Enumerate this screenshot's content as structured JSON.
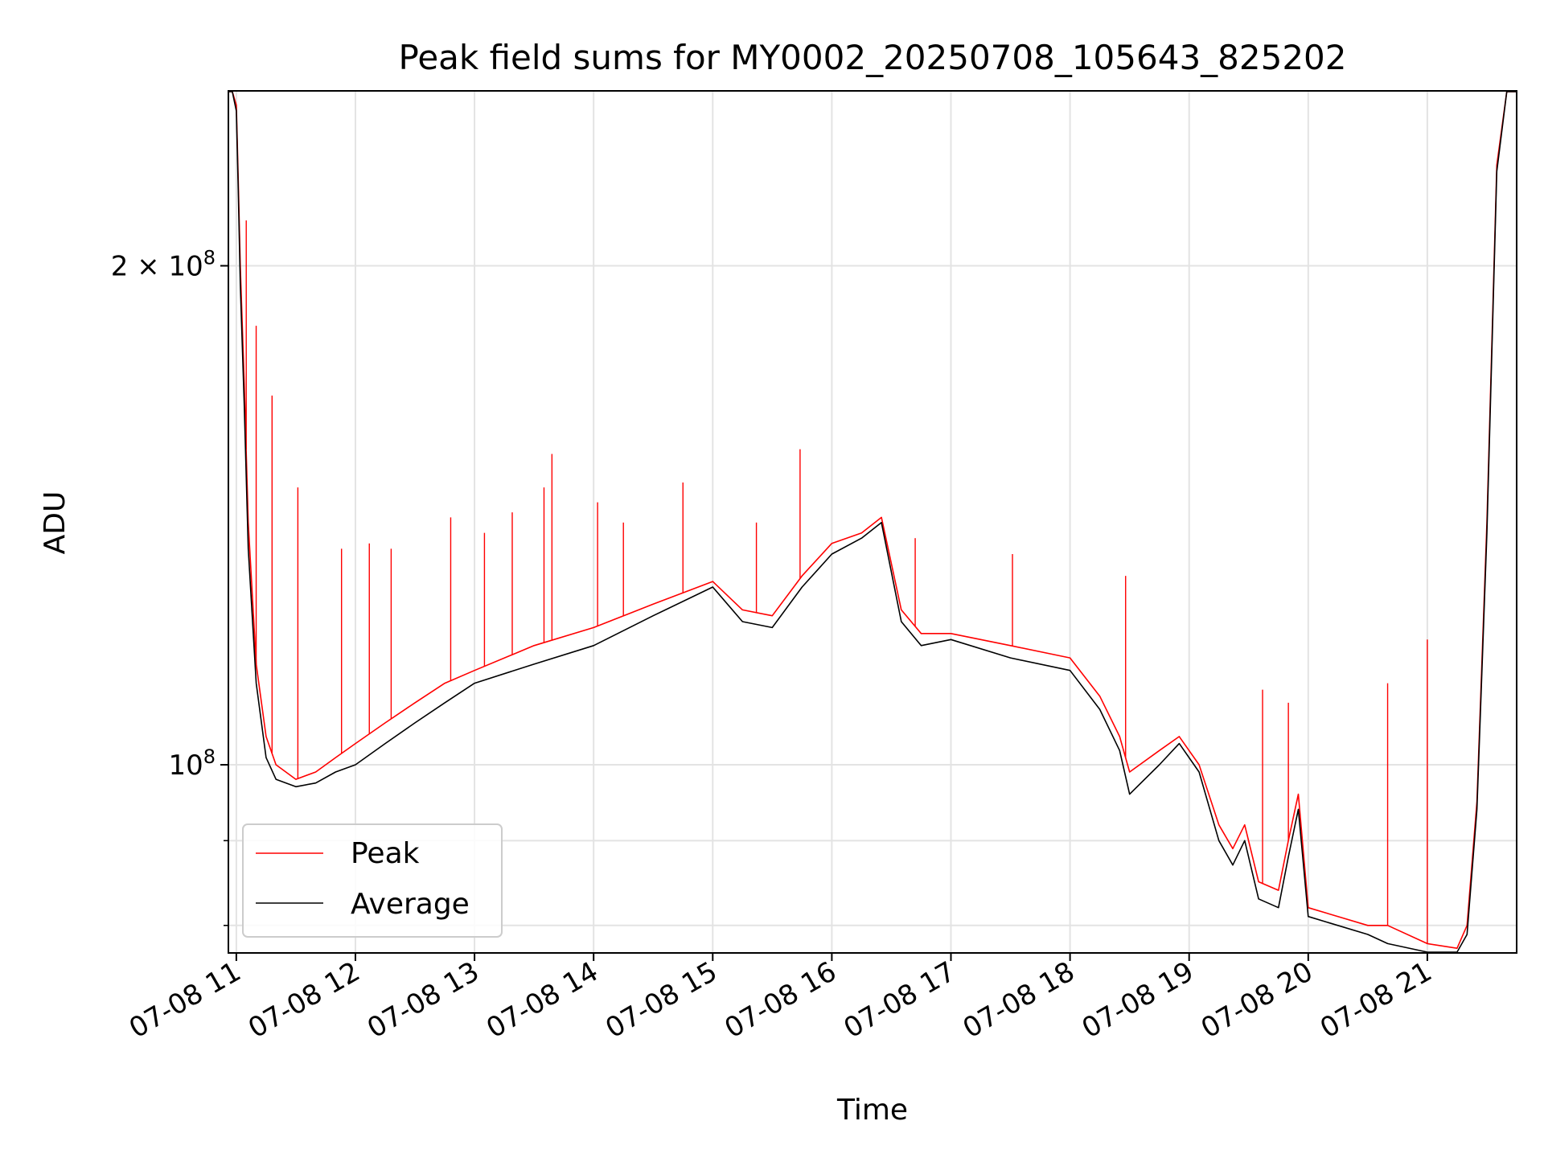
{
  "chart_data": {
    "type": "line",
    "title": "Peak field sums for MY0002_20250708_105643_825202",
    "xlabel": "Time",
    "ylabel": "ADU",
    "yscale": "log",
    "ylim": [
      77000000,
      255000000
    ],
    "xlim": [
      "2025-07-08 10:56",
      "2025-07-08 21:45"
    ],
    "grid": true,
    "legend_position": "lower-left",
    "x_ticks": [
      {
        "value": "2025-07-08 11:00",
        "label": "07-08 11"
      },
      {
        "value": "2025-07-08 12:00",
        "label": "07-08 12"
      },
      {
        "value": "2025-07-08 13:00",
        "label": "07-08 13"
      },
      {
        "value": "2025-07-08 14:00",
        "label": "07-08 14"
      },
      {
        "value": "2025-07-08 15:00",
        "label": "07-08 15"
      },
      {
        "value": "2025-07-08 16:00",
        "label": "07-08 16"
      },
      {
        "value": "2025-07-08 17:00",
        "label": "07-08 17"
      },
      {
        "value": "2025-07-08 18:00",
        "label": "07-08 18"
      },
      {
        "value": "2025-07-08 19:00",
        "label": "07-08 19"
      },
      {
        "value": "2025-07-08 20:00",
        "label": "07-08 20"
      },
      {
        "value": "2025-07-08 21:00",
        "label": "07-08 21"
      }
    ],
    "y_major_ticks": [
      {
        "value": 100000000,
        "mantissa": "",
        "exponent": "8"
      },
      {
        "value": 200000000,
        "mantissa": "2 × ",
        "exponent": "8"
      }
    ],
    "y_minor_ticks": [
      80000000,
      90000000
    ],
    "series": [
      {
        "name": "Peak",
        "color": "#ff0000",
        "x": [
          "2025-07-08 10:56",
          "2025-07-08 10:58",
          "2025-07-08 11:00",
          "2025-07-08 11:01",
          "2025-07-08 11:02",
          "2025-07-08 11:04",
          "2025-07-08 11:06",
          "2025-07-08 11:10",
          "2025-07-08 11:15",
          "2025-07-08 11:20",
          "2025-07-08 11:30",
          "2025-07-08 11:40",
          "2025-07-08 11:50",
          "2025-07-08 12:00",
          "2025-07-08 12:15",
          "2025-07-08 12:30",
          "2025-07-08 12:45",
          "2025-07-08 13:00",
          "2025-07-08 13:30",
          "2025-07-08 14:00",
          "2025-07-08 14:30",
          "2025-07-08 15:00",
          "2025-07-08 15:15",
          "2025-07-08 15:30",
          "2025-07-08 15:45",
          "2025-07-08 16:00",
          "2025-07-08 16:15",
          "2025-07-08 16:25",
          "2025-07-08 16:35",
          "2025-07-08 16:45",
          "2025-07-08 17:00",
          "2025-07-08 17:30",
          "2025-07-08 18:00",
          "2025-07-08 18:15",
          "2025-07-08 18:25",
          "2025-07-08 18:30",
          "2025-07-08 18:45",
          "2025-07-08 18:55",
          "2025-07-08 19:05",
          "2025-07-08 19:15",
          "2025-07-08 19:22",
          "2025-07-08 19:28",
          "2025-07-08 19:35",
          "2025-07-08 19:45",
          "2025-07-08 19:50",
          "2025-07-08 19:55",
          "2025-07-08 20:00",
          "2025-07-08 20:30",
          "2025-07-08 20:40",
          "2025-07-08 21:00",
          "2025-07-08 21:15",
          "2025-07-08 21:20",
          "2025-07-08 21:25",
          "2025-07-08 21:30",
          "2025-07-08 21:35",
          "2025-07-08 21:40",
          "2025-07-08 21:45"
        ],
        "y": [
          255000000,
          255000000,
          250000000,
          225000000,
          200000000,
          170000000,
          140000000,
          115000000,
          104000000,
          100000000,
          98000000,
          99000000,
          101000000,
          103000000,
          106000000,
          109000000,
          112000000,
          114000000,
          118000000,
          121000000,
          125000000,
          129000000,
          124000000,
          123000000,
          130000000,
          136000000,
          138000000,
          141000000,
          124000000,
          120000000,
          120000000,
          118000000,
          116000000,
          110000000,
          104000000,
          99000000,
          102000000,
          104000000,
          100000000,
          92000000,
          89000000,
          92000000,
          85000000,
          84000000,
          90000000,
          96000000,
          82000000,
          80000000,
          80000000,
          78000000,
          77500000,
          80000000,
          95000000,
          140000000,
          230000000,
          255000000,
          255000000
        ],
        "spikes": [
          {
            "x": "2025-07-08 11:05",
            "y": 213000000
          },
          {
            "x": "2025-07-08 11:10",
            "y": 184000000
          },
          {
            "x": "2025-07-08 11:18",
            "y": 167000000
          },
          {
            "x": "2025-07-08 11:31",
            "y": 147000000
          },
          {
            "x": "2025-07-08 11:53",
            "y": 135000000
          },
          {
            "x": "2025-07-08 12:07",
            "y": 136000000
          },
          {
            "x": "2025-07-08 12:18",
            "y": 135000000
          },
          {
            "x": "2025-07-08 12:48",
            "y": 141000000
          },
          {
            "x": "2025-07-08 13:05",
            "y": 138000000
          },
          {
            "x": "2025-07-08 13:19",
            "y": 142000000
          },
          {
            "x": "2025-07-08 13:35",
            "y": 147000000
          },
          {
            "x": "2025-07-08 13:39",
            "y": 154000000
          },
          {
            "x": "2025-07-08 14:02",
            "y": 144000000
          },
          {
            "x": "2025-07-08 14:15",
            "y": 140000000
          },
          {
            "x": "2025-07-08 14:45",
            "y": 148000000
          },
          {
            "x": "2025-07-08 15:22",
            "y": 140000000
          },
          {
            "x": "2025-07-08 15:44",
            "y": 155000000
          },
          {
            "x": "2025-07-08 16:42",
            "y": 137000000
          },
          {
            "x": "2025-07-08 17:31",
            "y": 134000000
          },
          {
            "x": "2025-07-08 18:28",
            "y": 130000000
          },
          {
            "x": "2025-07-08 19:37",
            "y": 111000000
          },
          {
            "x": "2025-07-08 19:50",
            "y": 109000000
          },
          {
            "x": "2025-07-08 20:40",
            "y": 112000000
          },
          {
            "x": "2025-07-08 21:00",
            "y": 119000000
          }
        ]
      },
      {
        "name": "Average",
        "color": "#000000",
        "x": [
          "2025-07-08 10:56",
          "2025-07-08 10:58",
          "2025-07-08 11:00",
          "2025-07-08 11:01",
          "2025-07-08 11:02",
          "2025-07-08 11:04",
          "2025-07-08 11:06",
          "2025-07-08 11:10",
          "2025-07-08 11:15",
          "2025-07-08 11:20",
          "2025-07-08 11:30",
          "2025-07-08 11:40",
          "2025-07-08 11:50",
          "2025-07-08 12:00",
          "2025-07-08 12:15",
          "2025-07-08 12:30",
          "2025-07-08 12:45",
          "2025-07-08 13:00",
          "2025-07-08 13:30",
          "2025-07-08 14:00",
          "2025-07-08 14:30",
          "2025-07-08 15:00",
          "2025-07-08 15:15",
          "2025-07-08 15:30",
          "2025-07-08 15:45",
          "2025-07-08 16:00",
          "2025-07-08 16:15",
          "2025-07-08 16:25",
          "2025-07-08 16:35",
          "2025-07-08 16:45",
          "2025-07-08 17:00",
          "2025-07-08 17:30",
          "2025-07-08 18:00",
          "2025-07-08 18:15",
          "2025-07-08 18:25",
          "2025-07-08 18:30",
          "2025-07-08 18:45",
          "2025-07-08 18:55",
          "2025-07-08 19:05",
          "2025-07-08 19:15",
          "2025-07-08 19:22",
          "2025-07-08 19:28",
          "2025-07-08 19:35",
          "2025-07-08 19:45",
          "2025-07-08 19:50",
          "2025-07-08 19:55",
          "2025-07-08 20:00",
          "2025-07-08 20:30",
          "2025-07-08 20:40",
          "2025-07-08 21:00",
          "2025-07-08 21:15",
          "2025-07-08 21:20",
          "2025-07-08 21:25",
          "2025-07-08 21:30",
          "2025-07-08 21:35",
          "2025-07-08 21:40",
          "2025-07-08 21:45"
        ],
        "y": [
          255000000,
          255000000,
          248000000,
          222000000,
          195000000,
          165000000,
          135000000,
          112000000,
          101000000,
          98000000,
          97000000,
          97500000,
          99000000,
          100000000,
          103000000,
          106000000,
          109000000,
          112000000,
          115000000,
          118000000,
          123000000,
          128000000,
          122000000,
          121000000,
          128000000,
          134000000,
          137000000,
          140000000,
          122000000,
          118000000,
          119000000,
          116000000,
          114000000,
          108000000,
          102000000,
          96000000,
          100000000,
          103000000,
          99000000,
          90000000,
          87000000,
          90000000,
          83000000,
          82000000,
          88000000,
          94000000,
          81000000,
          79000000,
          78000000,
          77000000,
          76500000,
          79000000,
          94000000,
          138000000,
          228000000,
          255000000,
          255000000
        ]
      }
    ]
  }
}
